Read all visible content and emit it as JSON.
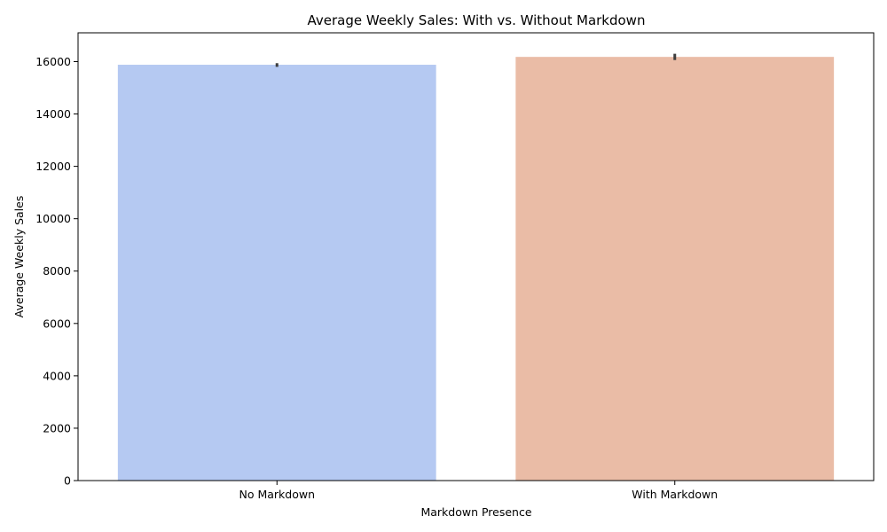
{
  "chart_data": {
    "type": "bar",
    "title": "Average Weekly Sales: With vs. Without Markdown",
    "xlabel": "Markdown Presence",
    "ylabel": "Average Weekly Sales",
    "categories": [
      "No Markdown",
      "With Markdown"
    ],
    "values": [
      15880,
      16180
    ],
    "error_bars": [
      {
        "low": 15800,
        "high": 15940
      },
      {
        "low": 16060,
        "high": 16300
      }
    ],
    "bar_colors": [
      "#b5c9f2",
      "#eabca6"
    ],
    "error_bar_color": "#3d3d3d",
    "ylim": [
      0,
      17100
    ],
    "yticks": [
      0,
      2000,
      4000,
      6000,
      8000,
      10000,
      12000,
      14000,
      16000
    ],
    "ytick_labels": [
      "0",
      "2000",
      "4000",
      "6000",
      "8000",
      "10000",
      "12000",
      "14000",
      "16000"
    ],
    "grid": false,
    "legend": "none"
  }
}
